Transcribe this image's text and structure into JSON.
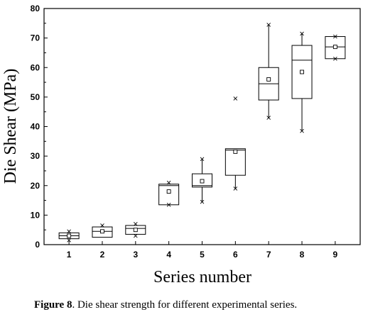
{
  "chart_data": {
    "type": "box",
    "xlabel": "Series number",
    "ylabel": "Die Shear (MPa)",
    "ylim": [
      0,
      80
    ],
    "yticks": [
      0,
      10,
      20,
      30,
      40,
      50,
      60,
      70,
      80
    ],
    "categories": [
      "1",
      "2",
      "3",
      "4",
      "5",
      "6",
      "7",
      "8",
      "9"
    ],
    "boxes": [
      {
        "category": "1",
        "min": 1.5,
        "q1": 2.0,
        "median": 3.0,
        "q3": 4.0,
        "max": 4.5,
        "mean": 3.0,
        "whisker_low": 2.0,
        "whisker_high": 4.0,
        "outliers": [
          1.5,
          4.5
        ]
      },
      {
        "category": "2",
        "min": 2.5,
        "q1": 2.5,
        "median": 4.5,
        "q3": 6.0,
        "max": 6.5,
        "mean": 4.5,
        "whisker_low": 2.5,
        "whisker_high": 6.0,
        "outliers": [
          6.5
        ]
      },
      {
        "category": "3",
        "min": 3.0,
        "q1": 3.5,
        "median": 5.5,
        "q3": 6.5,
        "max": 7.0,
        "mean": 5.0,
        "whisker_low": 3.5,
        "whisker_high": 6.5,
        "outliers": [
          3.0,
          7.0
        ]
      },
      {
        "category": "4",
        "min": 13.5,
        "q1": 13.5,
        "median": 20.0,
        "q3": 20.5,
        "max": 21.0,
        "mean": 18.0,
        "whisker_low": 13.5,
        "whisker_high": 20.5,
        "outliers": [
          13.5,
          21.0
        ]
      },
      {
        "category": "5",
        "min": 14.5,
        "q1": 19.5,
        "median": 20.0,
        "q3": 24.0,
        "max": 29.0,
        "mean": 21.5,
        "whisker_low": 14.5,
        "whisker_high": 29.0,
        "outliers": [
          14.5,
          29.0
        ]
      },
      {
        "category": "6",
        "min": 19.0,
        "q1": 23.5,
        "median": 32.0,
        "q3": 32.5,
        "max": 49.5,
        "mean": 31.5,
        "whisker_low": 19.0,
        "whisker_high": 32.5,
        "outliers": [
          19.0,
          49.5
        ]
      },
      {
        "category": "7",
        "min": 43.0,
        "q1": 49.0,
        "median": 54.5,
        "q3": 60.0,
        "max": 74.5,
        "mean": 56.0,
        "whisker_low": 43.0,
        "whisker_high": 74.5,
        "outliers": [
          43.0,
          74.5
        ]
      },
      {
        "category": "8",
        "min": 38.5,
        "q1": 49.5,
        "median": 62.5,
        "q3": 67.5,
        "max": 71.5,
        "mean": 58.5,
        "whisker_low": 38.5,
        "whisker_high": 71.5,
        "outliers": [
          38.5,
          71.5
        ]
      },
      {
        "category": "9",
        "min": 63.0,
        "q1": 63.0,
        "median": 67.0,
        "q3": 70.5,
        "max": 70.5,
        "mean": 67.0,
        "whisker_low": 63.0,
        "whisker_high": 70.5,
        "outliers": [
          63.0,
          70.5
        ]
      }
    ],
    "grid": false,
    "legend": "none"
  },
  "caption": {
    "label": "Figure 8",
    "text": ". Die shear strength for different experimental series."
  },
  "colors": {
    "axis": "#000000",
    "background": "#ffffff"
  }
}
